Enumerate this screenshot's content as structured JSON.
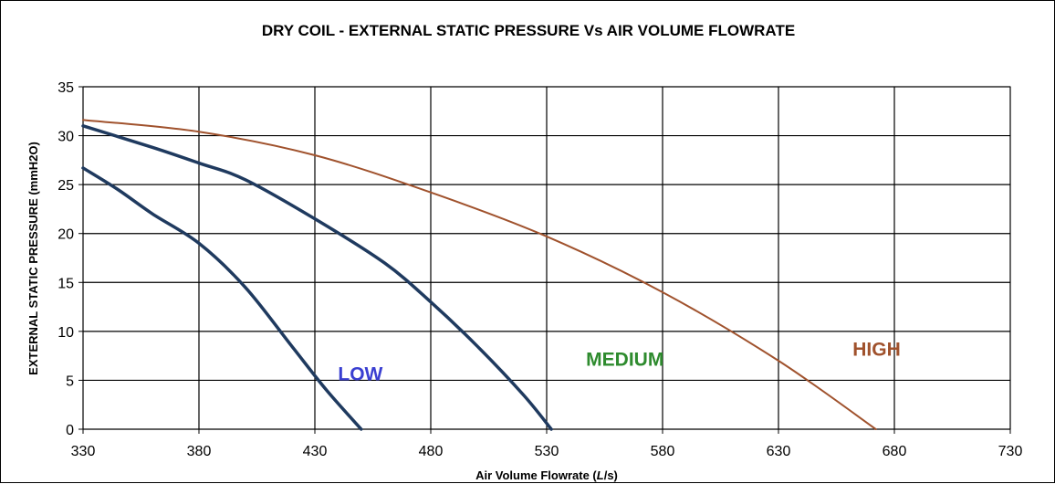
{
  "chart_data": {
    "type": "line",
    "title": "DRY COIL - EXTERNAL STATIC PRESSURE Vs AIR VOLUME FLOWRATE",
    "xlabel": "Air Volume Flowrate (L/s)",
    "ylabel": "EXTERNAL STATIC PRESSURE (mmH2O)",
    "xlim": [
      330,
      730
    ],
    "ylim": [
      0,
      35
    ],
    "x_ticks": [
      330,
      380,
      430,
      480,
      530,
      580,
      630,
      680,
      730
    ],
    "y_ticks": [
      0,
      5,
      10,
      15,
      20,
      25,
      30,
      35
    ],
    "grid": true,
    "legend": "none",
    "series": [
      {
        "name": "LOW",
        "color": "#1f3a5f",
        "label_color": "#3a3fd1",
        "x": [
          330,
          345,
          360,
          380,
          400,
          420,
          435,
          450
        ],
        "y": [
          26.7,
          24.5,
          22,
          19,
          14.5,
          8.5,
          4,
          0
        ]
      },
      {
        "name": "MEDIUM",
        "color": "#1f3a5f",
        "label_color": "#2e8b2e",
        "x": [
          330,
          360,
          380,
          400,
          430,
          460,
          480,
          500,
          520,
          532
        ],
        "y": [
          31,
          28.8,
          27.2,
          25.5,
          21.5,
          17,
          13,
          8.5,
          3.5,
          0
        ]
      },
      {
        "name": "HIGH",
        "color": "#a0522d",
        "label_color": "#a0522d",
        "x": [
          330,
          380,
          430,
          480,
          530,
          580,
          630,
          672
        ],
        "y": [
          31.6,
          30.4,
          28,
          24.2,
          19.7,
          14,
          7,
          0
        ]
      }
    ]
  }
}
